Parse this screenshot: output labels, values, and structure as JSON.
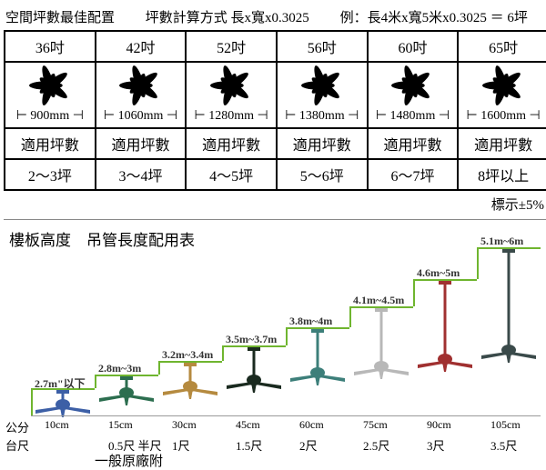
{
  "header": {
    "title": "空間坪數最佳配置",
    "formula": "坪數計算方式  長x寬x0.3025",
    "example": "例：長4米x寬5米x0.3025 ＝ 6坪"
  },
  "table": {
    "sizes": [
      "36吋",
      "42吋",
      "52吋",
      "56吋",
      "60吋",
      "65吋"
    ],
    "diameters": [
      "900mm",
      "1060mm",
      "1280mm",
      "1380mm",
      "1480mm",
      "1600mm"
    ],
    "row3_label": "適用坪數",
    "areas": [
      "2～3坪",
      "3～4坪",
      "4～5坪",
      "5～6坪",
      "6～7坪",
      "8坪以上"
    ],
    "tolerance": "標示±5%"
  },
  "chart": {
    "title": "樓板高度　吊管長度配用表",
    "step_color": "#6fb52f",
    "text_color": "#333333",
    "steps": [
      {
        "label": "2.7m\"以下",
        "height": "10cm",
        "ruler": "",
        "fan_color": "#3c5fa6",
        "rod": 0
      },
      {
        "label": "2.8m~3m",
        "height": "15cm",
        "ruler": "0.5尺 半尺",
        "fan_color": "#2c6e4f",
        "rod": 2
      },
      {
        "label": "3.2m~3.4m",
        "height": "30cm",
        "ruler": "1尺",
        "fan_color": "#b58a3f",
        "rod": 10
      },
      {
        "label": "3.5m~3.7m",
        "height": "45cm",
        "ruler": "1.5尺",
        "fan_color": "#1a2a1f",
        "rod": 20
      },
      {
        "label": "3.8m~4m",
        "height": "60cm",
        "ruler": "2尺",
        "fan_color": "#3d7f7a",
        "rod": 32
      },
      {
        "label": "4.1m~4.5m",
        "height": "75cm",
        "ruler": "2.5尺",
        "fan_color": "#b8b8b8",
        "rod": 48
      },
      {
        "label": "4.6m~5m",
        "height": "90cm",
        "ruler": "3尺",
        "fan_color": "#a03030",
        "rod": 70
      },
      {
        "label": "5.1m~6m",
        "height": "105cm",
        "ruler": "3.5尺",
        "fan_color": "#3a4a4a",
        "rod": 95
      }
    ],
    "y_label_top": "公分",
    "y_label_bot": "台尺",
    "footnote": "一般原廠附"
  }
}
